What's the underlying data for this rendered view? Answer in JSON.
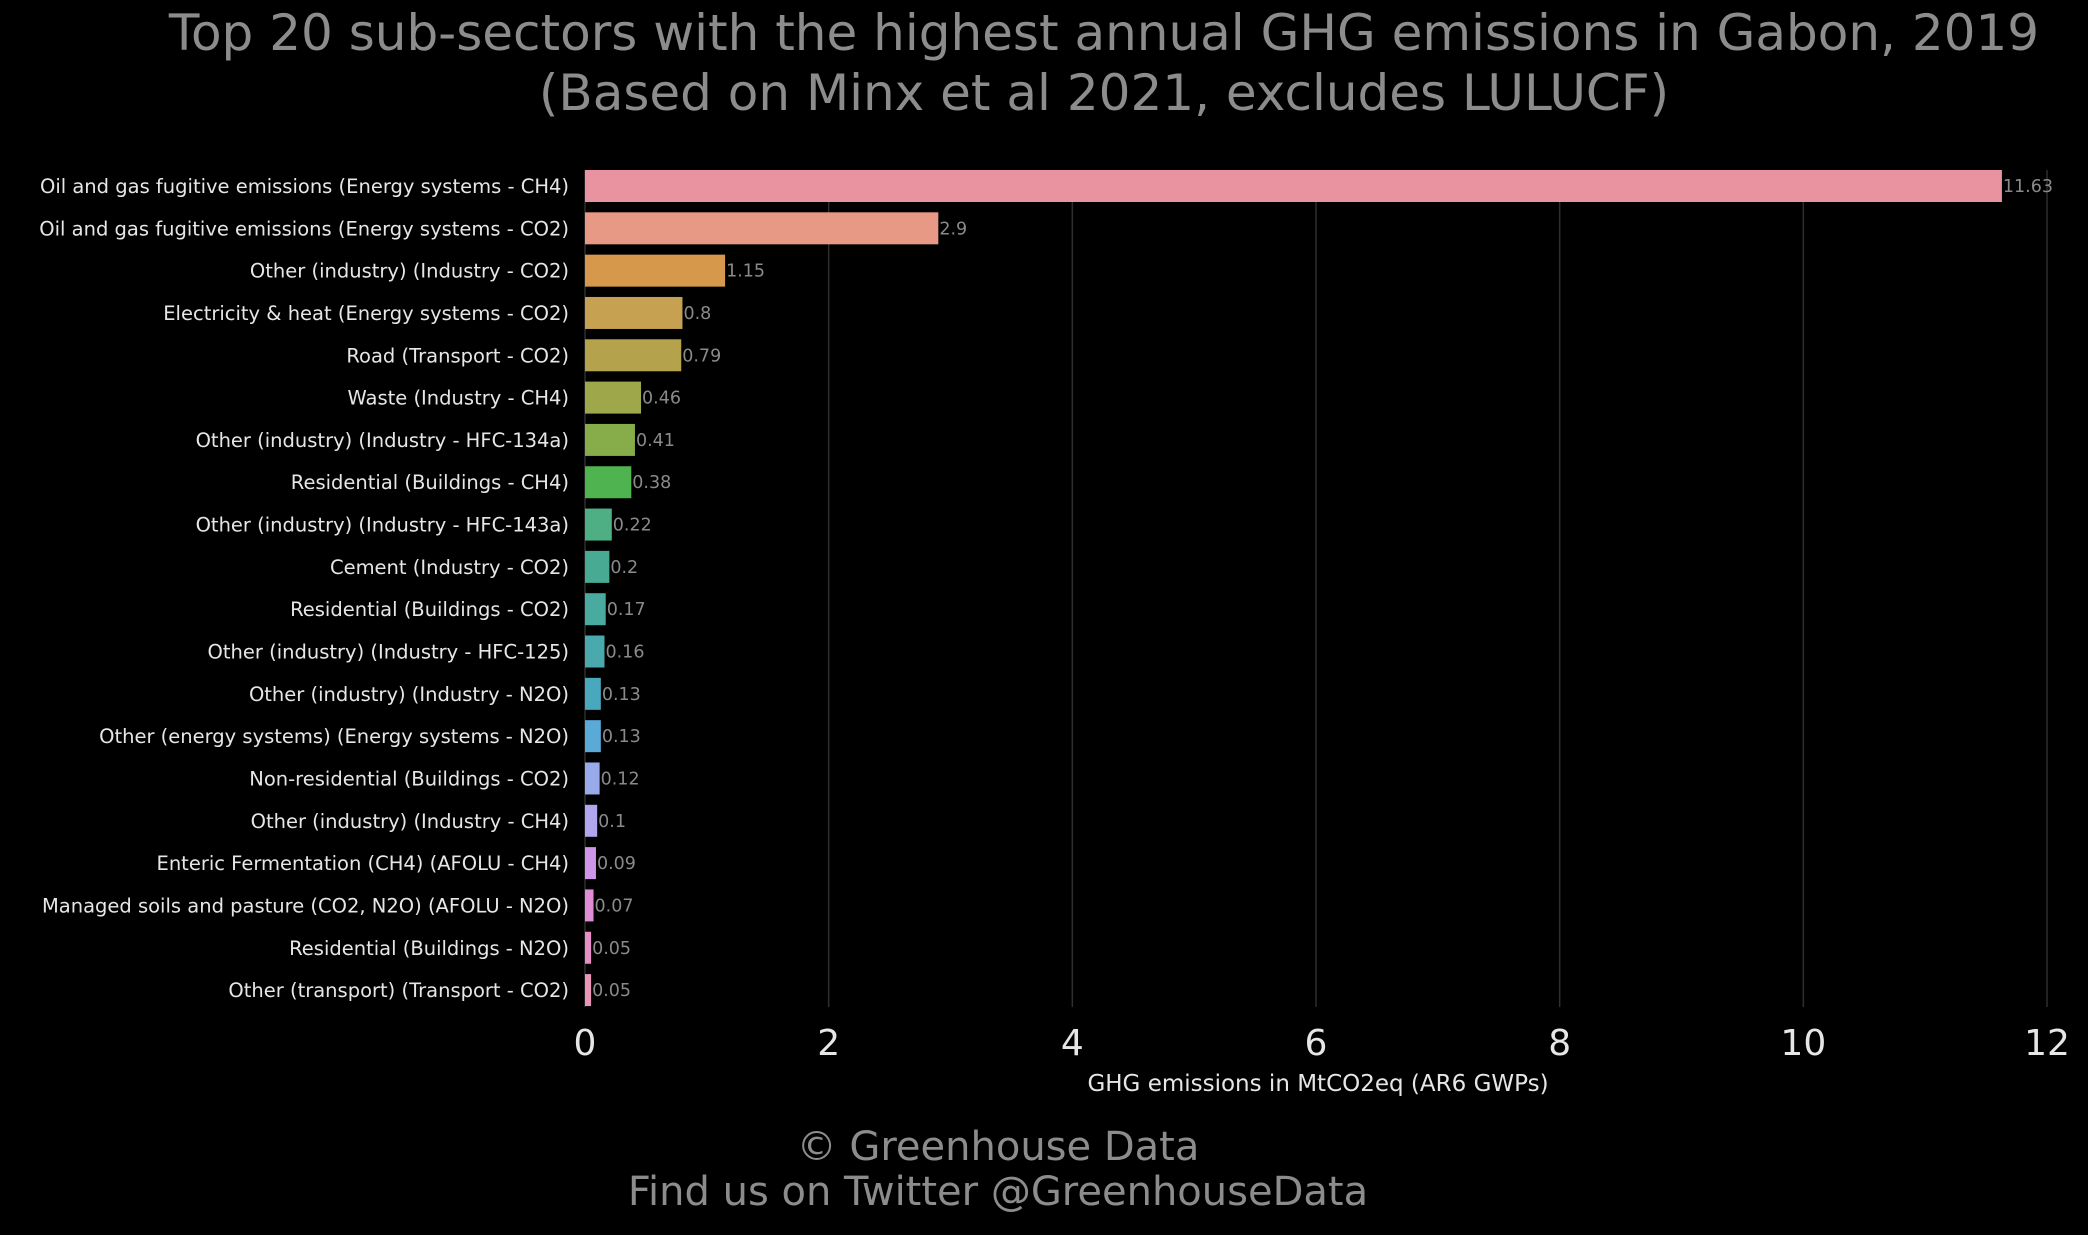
{
  "chart_data": {
    "type": "bar",
    "orientation": "horizontal",
    "title": "Top 20 sub-sectors with the highest annual GHG emissions in Gabon, 2019",
    "subtitle": "(Based on Minx et al 2021, excludes LULUCF)",
    "xlabel": "GHG emissions in MtCO2eq (AR6 GWPs)",
    "ylabel": "",
    "xlim": [
      0,
      12
    ],
    "xticks": [
      0,
      2,
      4,
      6,
      8,
      10,
      12
    ],
    "grid": "vertical",
    "legend": "none",
    "categories": [
      "Oil and gas fugitive emissions (Energy systems - CH4)",
      "Oil and gas fugitive emissions (Energy systems - CO2)",
      "Other (industry) (Industry - CO2)",
      "Electricity & heat (Energy systems - CO2)",
      "Road (Transport - CO2)",
      "Waste (Industry - CH4)",
      "Other (industry) (Industry - HFC-134a)",
      "Residential (Buildings - CH4)",
      "Other (industry) (Industry - HFC-143a)",
      "Cement (Industry - CO2)",
      "Residential (Buildings - CO2)",
      "Other (industry) (Industry - HFC-125)",
      "Other (industry) (Industry - N2O)",
      "Other (energy systems) (Energy systems - N2O)",
      "Non-residential (Buildings - CO2)",
      "Other (industry) (Industry - CH4)",
      "Enteric Fermentation (CH4) (AFOLU - CH4)",
      "Managed soils and pasture (CO2, N2O) (AFOLU - N2O)",
      "Residential (Buildings - N2O)",
      "Other (transport) (Transport - CO2)"
    ],
    "values": [
      11.63,
      2.9,
      1.15,
      0.8,
      0.79,
      0.46,
      0.41,
      0.38,
      0.22,
      0.2,
      0.17,
      0.16,
      0.13,
      0.13,
      0.12,
      0.1,
      0.09,
      0.07,
      0.05,
      0.05
    ],
    "value_labels": [
      "11.63",
      "2.9",
      "1.15",
      "0.8",
      "0.79",
      "0.46",
      "0.41",
      "0.38",
      "0.22",
      "0.2",
      "0.17",
      "0.16",
      "0.13",
      "0.13",
      "0.12",
      "0.1",
      "0.09",
      "0.07",
      "0.05",
      "0.05"
    ],
    "colors": [
      "#e8939f",
      "#e89985",
      "#d6994c",
      "#c5a151",
      "#b4a24d",
      "#9ea84a",
      "#86ad49",
      "#4fb450",
      "#4daf83",
      "#49aa94",
      "#49ab9f",
      "#4aa9ac",
      "#4aa8bd",
      "#5aaad8",
      "#99aaea",
      "#b2a4ed",
      "#ce95e8",
      "#df8ed6",
      "#e68fc6",
      "#e895b8"
    ]
  },
  "footer": {
    "copyright": "© Greenhouse Data",
    "twitter": "Find us on Twitter @GreenhouseData"
  },
  "theme": {
    "background": "#000000",
    "title_color": "#8c8c8c",
    "label_color": "#e6e6e6",
    "value_label_color": "#8a8a8a",
    "grid_color": "#2e2e2e",
    "footer_color": "#8c8c8c"
  }
}
